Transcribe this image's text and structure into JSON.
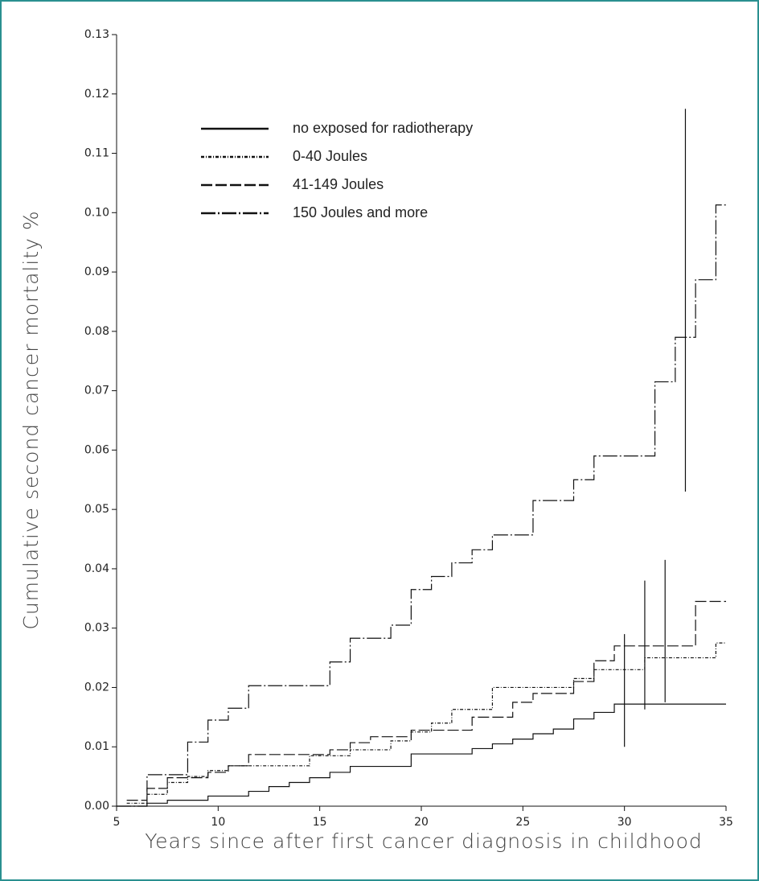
{
  "chart_data": {
    "type": "step",
    "x_label": "Years since after first cancer diagnosis in childhood",
    "y_label": "Cumulative second cancer mortality %",
    "xlim": [
      5,
      35
    ],
    "xticks": [
      5,
      10,
      15,
      20,
      25,
      30,
      35
    ],
    "ylim": [
      0,
      0.13
    ],
    "yticks": [
      {
        "value": 0,
        "label": "0.00"
      },
      {
        "value": 0.01,
        "label": "0.01"
      },
      {
        "value": 0.02,
        "label": "0.02"
      },
      {
        "value": 0.03,
        "label": "0.03"
      },
      {
        "value": 0.04,
        "label": "0.04"
      },
      {
        "value": 0.05,
        "label": "0.05"
      },
      {
        "value": 0.06,
        "label": "0.06"
      },
      {
        "value": 0.07,
        "label": "0.07"
      },
      {
        "value": 0.08,
        "label": "0.08"
      },
      {
        "value": 0.09,
        "label": "0.09"
      },
      {
        "value": 0.1,
        "label": "0.10"
      },
      {
        "value": 0.11,
        "label": "0.11"
      },
      {
        "value": 0.12,
        "label": "0.12"
      },
      {
        "value": 0.13,
        "label": "0.13"
      }
    ],
    "series": [
      {
        "name": "no exposed for radiotherapy",
        "color": "#111111",
        "dash": "none",
        "x": [
          5,
          6.5,
          7.5,
          9.5,
          11.5,
          12.5,
          13.5,
          14.5,
          15.5,
          16.5,
          19.5,
          22.5,
          23.5,
          24.5,
          25.5,
          26.5,
          27.5,
          28.5,
          29.5
        ],
        "values": [
          0,
          0.0005,
          0.001,
          0.0017,
          0.0025,
          0.0033,
          0.004,
          0.0048,
          0.0057,
          0.0067,
          0.0088,
          0.0097,
          0.0105,
          0.0113,
          0.0122,
          0.013,
          0.0147,
          0.0158,
          0.0172
        ],
        "ci": {
          "x": 30,
          "low": 0.01,
          "high": 0.029
        }
      },
      {
        "name": "0-40 Joules",
        "color": "#111111",
        "dash": "4 2 1 2",
        "x": [
          5.5,
          6.5,
          7.5,
          8.5,
          9.5,
          10.5,
          14.5,
          16.5,
          18.5,
          19.5,
          20.5,
          21.5,
          23.5,
          27.5,
          28.5,
          31,
          34.5
        ],
        "values": [
          0.0005,
          0.002,
          0.004,
          0.005,
          0.006,
          0.0068,
          0.0085,
          0.0095,
          0.011,
          0.0125,
          0.014,
          0.0163,
          0.02,
          0.0215,
          0.023,
          0.025,
          0.0275
        ],
        "ci": {
          "x": 31,
          "low": 0.0163,
          "high": 0.038
        }
      },
      {
        "name": "41-149 Joules",
        "color": "#111111",
        "dash": "14 4",
        "x": [
          5.5,
          6.5,
          7.5,
          9.5,
          10.5,
          11.5,
          15.5,
          16.5,
          17.5,
          19.5,
          22.5,
          24.5,
          25.5,
          27.5,
          28.5,
          29.5,
          33.5
        ],
        "values": [
          0.001,
          0.003,
          0.0048,
          0.0057,
          0.0068,
          0.0087,
          0.0095,
          0.0107,
          0.0117,
          0.0128,
          0.015,
          0.0175,
          0.019,
          0.021,
          0.0245,
          0.027,
          0.0345
        ],
        "ci": {
          "x": 32,
          "low": 0.0175,
          "high": 0.0415
        }
      },
      {
        "name": "150 Joules and more",
        "color": "#111111",
        "dash": "18 3 2 3",
        "x": [
          5,
          6.5,
          8.5,
          9.5,
          10.5,
          11.5,
          15.5,
          16.5,
          18.5,
          19.5,
          20.5,
          21.5,
          22.5,
          23.5,
          25.5,
          27.5,
          28.5,
          31.5,
          32.5,
          33.5,
          34.5
        ],
        "values": [
          0,
          0.0053,
          0.0108,
          0.0145,
          0.0165,
          0.0203,
          0.0243,
          0.0283,
          0.0305,
          0.0365,
          0.0387,
          0.041,
          0.0432,
          0.0457,
          0.0515,
          0.055,
          0.059,
          0.0715,
          0.079,
          0.0887,
          0.1013
        ],
        "ci": {
          "x": 33,
          "low": 0.053,
          "high": 0.1175
        }
      }
    ]
  }
}
